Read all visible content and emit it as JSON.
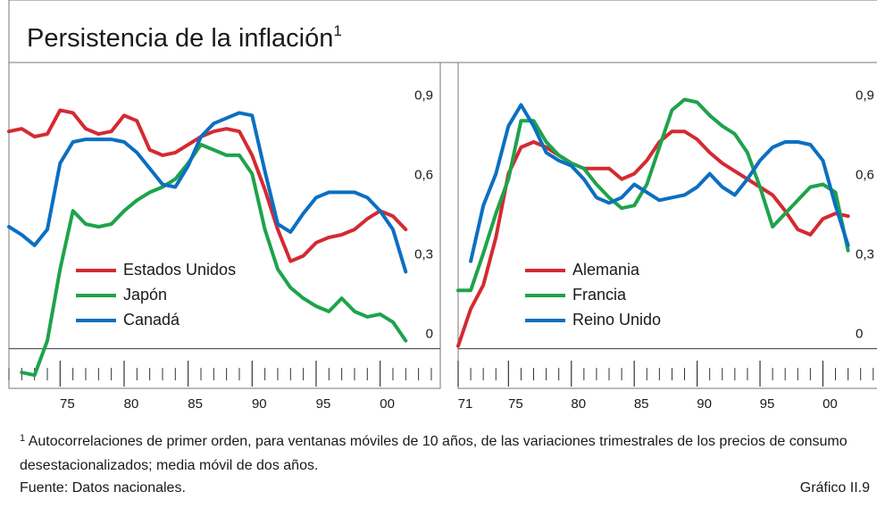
{
  "title": "Persistencia de la inflación",
  "title_note": "1",
  "footnote_marker": "1",
  "footnote": "Autocorrelaciones de primer orden, para ventanas móviles de 10 años, de las variaciones trimestrales de los precios de consumo desestacionalizados; media móvil de dos años.",
  "source": "Fuente: Datos nacionales.",
  "figure_label": "Gráfico II.9",
  "chart_data": [
    {
      "type": "line",
      "x": [
        1971,
        1972,
        1973,
        1974,
        1975,
        1976,
        1977,
        1978,
        1979,
        1980,
        1981,
        1982,
        1983,
        1984,
        1985,
        1986,
        1987,
        1988,
        1989,
        1990,
        1991,
        1992,
        1993,
        1994,
        1995,
        1996,
        1997,
        1998,
        1999,
        2000,
        2001,
        2002
      ],
      "series": [
        {
          "name": "Estados Unidos",
          "color": "#d42a32",
          "values": [
            0.82,
            0.83,
            0.8,
            0.81,
            0.9,
            0.89,
            0.83,
            0.81,
            0.82,
            0.88,
            0.86,
            0.75,
            0.73,
            0.74,
            0.77,
            0.8,
            0.82,
            0.83,
            0.82,
            0.73,
            0.6,
            0.45,
            0.33,
            0.35,
            0.4,
            0.42,
            0.43,
            0.45,
            0.49,
            0.52,
            0.5,
            0.45
          ]
        },
        {
          "name": "Japón",
          "color": "#1ea34b",
          "values": [
            null,
            -0.09,
            -0.1,
            0.03,
            0.3,
            0.52,
            0.47,
            0.46,
            0.47,
            0.52,
            0.56,
            0.59,
            0.61,
            0.64,
            0.7,
            0.77,
            0.75,
            0.73,
            0.73,
            0.66,
            0.45,
            0.3,
            0.23,
            0.19,
            0.16,
            0.14,
            0.19,
            0.14,
            0.12,
            0.13,
            0.1,
            0.03
          ]
        },
        {
          "name": "Canadá",
          "color": "#0b6fc1",
          "values": [
            0.46,
            0.43,
            0.39,
            0.45,
            0.7,
            0.78,
            0.79,
            0.79,
            0.79,
            0.78,
            0.74,
            0.68,
            0.62,
            0.61,
            0.69,
            0.8,
            0.85,
            0.87,
            0.89,
            0.88,
            0.67,
            0.47,
            0.44,
            0.51,
            0.57,
            0.59,
            0.59,
            0.59,
            0.57,
            0.52,
            0.45,
            0.29
          ]
        }
      ],
      "xlim": [
        1971,
        2004.7
      ],
      "xticks": [
        {
          "value": 1975,
          "label": "75"
        },
        {
          "value": 1980,
          "label": "80"
        },
        {
          "value": 1985,
          "label": "85"
        },
        {
          "value": 1990,
          "label": "90"
        },
        {
          "value": 1995,
          "label": "95"
        },
        {
          "value": 2000,
          "label": "00"
        }
      ],
      "ylim": [
        -0.15,
        1.08
      ],
      "yticks": [
        0,
        {
          "value": 0.3,
          "label": "0,3"
        },
        {
          "value": 0.6,
          "label": "0,6"
        },
        {
          "value": 0.9,
          "label": "0,9"
        }
      ]
    },
    {
      "type": "line",
      "x": [
        1971,
        1972,
        1973,
        1974,
        1975,
        1976,
        1977,
        1978,
        1979,
        1980,
        1981,
        1982,
        1983,
        1984,
        1985,
        1986,
        1987,
        1988,
        1989,
        1990,
        1991,
        1992,
        1993,
        1994,
        1995,
        1996,
        1997,
        1998,
        1999,
        2000,
        2001,
        2002
      ],
      "series": [
        {
          "name": "Alemania",
          "color": "#d42a32",
          "values": [
            0.01,
            0.15,
            0.24,
            0.42,
            0.66,
            0.76,
            0.78,
            0.76,
            0.73,
            0.7,
            0.68,
            0.68,
            0.68,
            0.64,
            0.66,
            0.71,
            0.78,
            0.82,
            0.82,
            0.79,
            0.74,
            0.7,
            0.67,
            0.64,
            0.61,
            0.58,
            0.52,
            0.45,
            0.43,
            0.49,
            0.51,
            0.5
          ]
        },
        {
          "name": "Francia",
          "color": "#1ea34b",
          "values": [
            0.22,
            0.22,
            0.36,
            0.51,
            0.64,
            0.86,
            0.86,
            0.78,
            0.73,
            0.7,
            0.68,
            0.62,
            0.57,
            0.53,
            0.54,
            0.62,
            0.76,
            0.9,
            0.94,
            0.93,
            0.88,
            0.84,
            0.81,
            0.74,
            0.61,
            0.46,
            0.51,
            0.56,
            0.61,
            0.62,
            0.59,
            0.37
          ]
        },
        {
          "name": "Reino Unido",
          "color": "#0b6fc1",
          "values": [
            null,
            0.33,
            0.54,
            0.66,
            0.84,
            0.92,
            0.84,
            0.74,
            0.71,
            0.69,
            0.64,
            0.57,
            0.55,
            0.57,
            0.62,
            0.59,
            0.56,
            0.57,
            0.58,
            0.61,
            0.66,
            0.61,
            0.58,
            0.64,
            0.71,
            0.76,
            0.78,
            0.78,
            0.77,
            0.71,
            0.54,
            0.39
          ]
        }
      ],
      "xlim": [
        1971,
        2004.3
      ],
      "xticks": [
        {
          "value": 1971,
          "label": "71"
        },
        {
          "value": 1975,
          "label": "75"
        },
        {
          "value": 1980,
          "label": "80"
        },
        {
          "value": 1985,
          "label": "85"
        },
        {
          "value": 1990,
          "label": "90"
        },
        {
          "value": 1995,
          "label": "95"
        },
        {
          "value": 2000,
          "label": "00"
        }
      ],
      "ylim": [
        -0.15,
        1.08
      ],
      "yticks": [
        0,
        {
          "value": 0.3,
          "label": "0,3"
        },
        {
          "value": 0.6,
          "label": "0,6"
        },
        {
          "value": 0.9,
          "label": "0,9"
        }
      ]
    }
  ]
}
